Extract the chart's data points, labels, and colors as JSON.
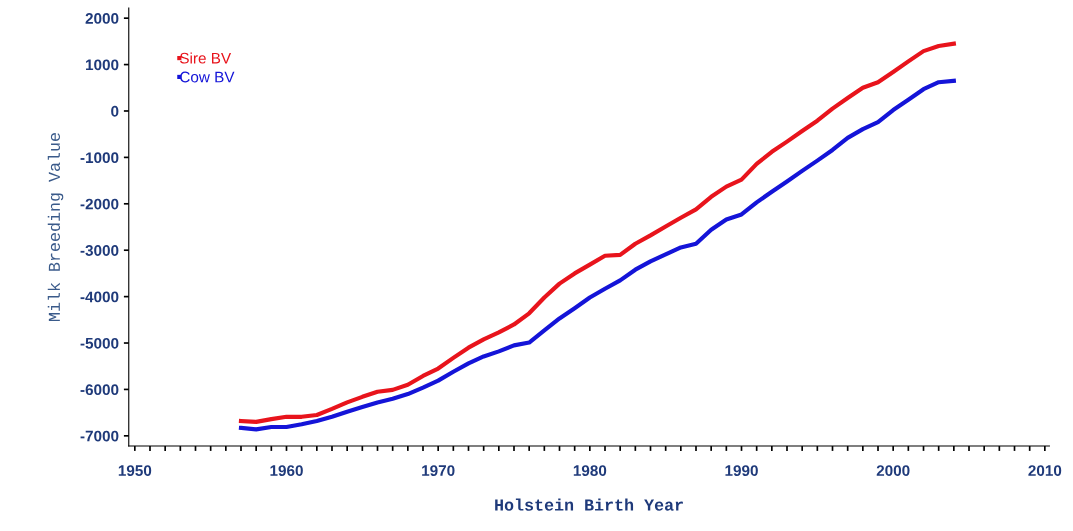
{
  "chart_data": {
    "type": "line",
    "xlabel": "Holstein Birth Year",
    "ylabel": "Milk Breeding Value",
    "x": [
      1957,
      1958,
      1959,
      1960,
      1961,
      1962,
      1963,
      1964,
      1965,
      1966,
      1967,
      1968,
      1969,
      1970,
      1971,
      1972,
      1973,
      1974,
      1975,
      1976,
      1977,
      1978,
      1979,
      1980,
      1981,
      1982,
      1983,
      1984,
      1985,
      1986,
      1987,
      1988,
      1989,
      1990,
      1991,
      1992,
      1993,
      1994,
      1995,
      1996,
      1997,
      1998,
      1999,
      2000,
      2001,
      2002,
      2003,
      2004
    ],
    "series": [
      {
        "name": "Sire BV",
        "color": "#e8141c",
        "values": [
          -6680,
          -6700,
          -6640,
          -6590,
          -6590,
          -6550,
          -6420,
          -6280,
          -6160,
          -6050,
          -6010,
          -5900,
          -5710,
          -5550,
          -5320,
          -5100,
          -4920,
          -4770,
          -4600,
          -4360,
          -4020,
          -3720,
          -3500,
          -3310,
          -3120,
          -3100,
          -2860,
          -2680,
          -2490,
          -2300,
          -2120,
          -1850,
          -1630,
          -1480,
          -1140,
          -880,
          -660,
          -430,
          -210,
          50,
          280,
          500,
          620,
          840,
          1070,
          1290,
          1400,
          1450
        ]
      },
      {
        "name": "Cow BV",
        "color": "#1414d8",
        "values": [
          -6830,
          -6860,
          -6810,
          -6810,
          -6750,
          -6680,
          -6590,
          -6480,
          -6380,
          -6280,
          -6200,
          -6100,
          -5960,
          -5810,
          -5620,
          -5440,
          -5290,
          -5180,
          -5050,
          -4990,
          -4730,
          -4470,
          -4250,
          -4020,
          -3830,
          -3650,
          -3420,
          -3240,
          -3090,
          -2940,
          -2860,
          -2560,
          -2340,
          -2230,
          -1970,
          -1740,
          -1520,
          -1290,
          -1070,
          -840,
          -580,
          -390,
          -240,
          20,
          240,
          470,
          620,
          650
        ]
      }
    ],
    "xlim": [
      1949.6,
      2010.3
    ],
    "ylim": [
      -7220,
      2220
    ],
    "xticks": [
      1950,
      {
        "value": 1951,
        "label": null
      },
      {
        "value": 1952,
        "label": null
      },
      {
        "value": 1953,
        "label": null
      },
      {
        "value": 1954,
        "label": null
      },
      {
        "value": 1955,
        "label": null
      },
      {
        "value": 1956,
        "label": null
      },
      {
        "value": 1957,
        "label": null
      },
      {
        "value": 1958,
        "label": null
      },
      {
        "value": 1959,
        "label": null
      },
      1960,
      {
        "value": 1961,
        "label": null
      },
      {
        "value": 1962,
        "label": null
      },
      {
        "value": 1963,
        "label": null
      },
      {
        "value": 1964,
        "label": null
      },
      {
        "value": 1965,
        "label": null
      },
      {
        "value": 1966,
        "label": null
      },
      {
        "value": 1967,
        "label": null
      },
      {
        "value": 1968,
        "label": null
      },
      {
        "value": 1969,
        "label": null
      },
      1970,
      {
        "value": 1971,
        "label": null
      },
      {
        "value": 1972,
        "label": null
      },
      {
        "value": 1973,
        "label": null
      },
      {
        "value": 1974,
        "label": null
      },
      {
        "value": 1975,
        "label": null
      },
      {
        "value": 1976,
        "label": null
      },
      {
        "value": 1977,
        "label": null
      },
      {
        "value": 1978,
        "label": null
      },
      {
        "value": 1979,
        "label": null
      },
      1980,
      {
        "value": 1981,
        "label": null
      },
      {
        "value": 1982,
        "label": null
      },
      {
        "value": 1983,
        "label": null
      },
      {
        "value": 1984,
        "label": null
      },
      {
        "value": 1985,
        "label": null
      },
      {
        "value": 1986,
        "label": null
      },
      {
        "value": 1987,
        "label": null
      },
      {
        "value": 1988,
        "label": null
      },
      {
        "value": 1989,
        "label": null
      },
      1990,
      {
        "value": 1991,
        "label": null
      },
      {
        "value": 1992,
        "label": null
      },
      {
        "value": 1993,
        "label": null
      },
      {
        "value": 1994,
        "label": null
      },
      {
        "value": 1995,
        "label": null
      },
      {
        "value": 1996,
        "label": null
      },
      {
        "value": 1997,
        "label": null
      },
      {
        "value": 1998,
        "label": null
      },
      {
        "value": 1999,
        "label": null
      },
      2000,
      {
        "value": 2001,
        "label": null
      },
      {
        "value": 2002,
        "label": null
      },
      {
        "value": 2003,
        "label": null
      },
      {
        "value": 2004,
        "label": null
      },
      {
        "value": 2005,
        "label": null
      },
      {
        "value": 2006,
        "label": null
      },
      {
        "value": 2007,
        "label": null
      },
      {
        "value": 2008,
        "label": null
      },
      {
        "value": 2009,
        "label": null
      },
      2010
    ],
    "yticks": [
      -7000,
      -6000,
      -5000,
      -4000,
      -3000,
      -2000,
      -1000,
      0,
      1000,
      2000
    ],
    "legend": "top left",
    "grid": false,
    "marker": "none",
    "line_style": "solid"
  }
}
